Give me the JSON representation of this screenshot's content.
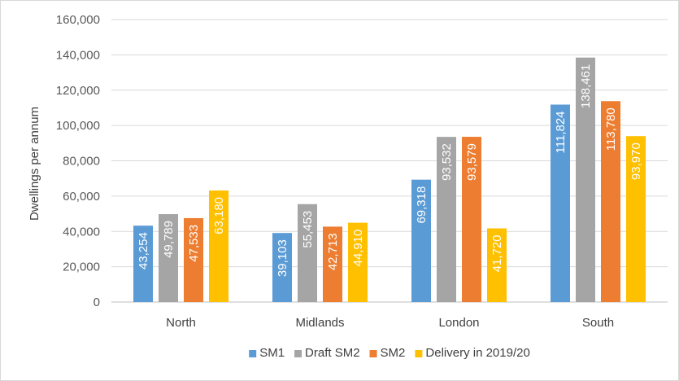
{
  "chart_data": {
    "type": "bar",
    "title": "",
    "xlabel": "",
    "ylabel": "Dwellings per annum",
    "ylim": [
      0,
      160000
    ],
    "yticks": [
      0,
      20000,
      40000,
      60000,
      80000,
      100000,
      120000,
      140000,
      160000
    ],
    "ytick_labels": [
      "0",
      "20,000",
      "40,000",
      "60,000",
      "80,000",
      "100,000",
      "120,000",
      "140,000",
      "160,000"
    ],
    "grid": true,
    "legend_position": "bottom",
    "categories": [
      "North",
      "Midlands",
      "London",
      "South"
    ],
    "series": [
      {
        "name": "SM1",
        "color": "#5b9bd5",
        "values": [
          43254,
          39103,
          69318,
          111824
        ],
        "labels": [
          "43,254",
          "39,103",
          "69,318",
          "111,824"
        ]
      },
      {
        "name": "Draft SM2",
        "color": "#a5a5a5",
        "values": [
          49789,
          55453,
          93532,
          138461
        ],
        "labels": [
          "49,789",
          "55,453",
          "93,532",
          "138,461"
        ]
      },
      {
        "name": "SM2",
        "color": "#ed7d31",
        "values": [
          47533,
          42713,
          93579,
          113780
        ],
        "labels": [
          "47,533",
          "42,713",
          "93,579",
          "113,780"
        ]
      },
      {
        "name": "Delivery in 2019/20",
        "color": "#ffc000",
        "values": [
          63180,
          44910,
          41720,
          93970
        ],
        "labels": [
          "63,180",
          "44,910",
          "41,720",
          "93,970"
        ]
      }
    ]
  }
}
